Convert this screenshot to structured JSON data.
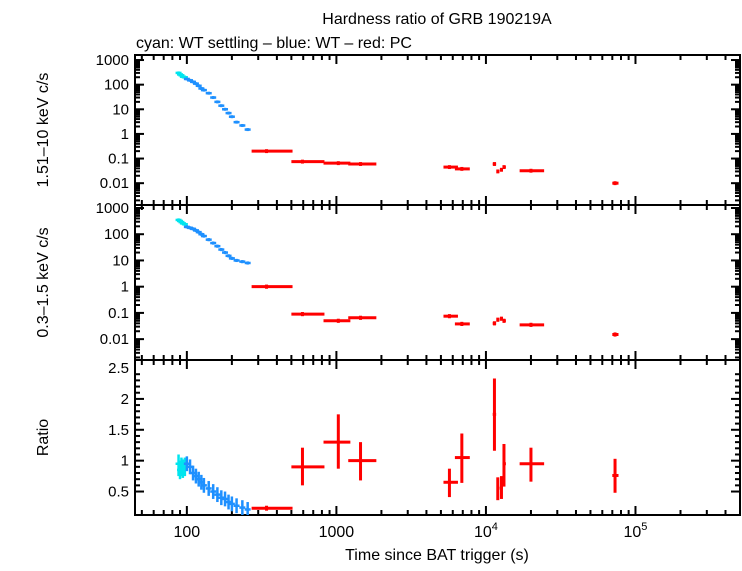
{
  "chart_data": {
    "type": "scatter",
    "title": "Hardness ratio of GRB 190219A",
    "subtitle": "cyan: WT settling – blue: WT – red: PC",
    "xlabel": "Time since BAT trigger (s)",
    "xscale": "log",
    "xlim": [
      45,
      500000
    ],
    "xticks": [
      "100",
      "1000",
      "10^4",
      "10^5"
    ],
    "xtick_values": [
      100,
      1000,
      10000,
      100000
    ],
    "colors": {
      "wt_settling": "#00e5ee",
      "wt": "#1e90ff",
      "pc": "#ff0000"
    },
    "panels": [
      {
        "ylabel": "1.51–10 keV c/s",
        "yscale": "log",
        "ylim": [
          0.0013,
          1600
        ],
        "yticks": [
          "1000",
          "100",
          "10",
          "1",
          "0.1",
          "0.01"
        ],
        "ytick_values": [
          1000,
          100,
          10,
          1,
          0.1,
          0.01
        ],
        "key": "hard"
      },
      {
        "ylabel": "0.3–1.5 keV c/s",
        "yscale": "log",
        "ylim": [
          0.0016,
          1300
        ],
        "yticks": [
          "1000",
          "100",
          "10",
          "1",
          "0.1",
          "0.01"
        ],
        "ytick_values": [
          1000,
          100,
          10,
          1,
          0.1,
          0.01
        ],
        "key": "soft"
      },
      {
        "ylabel": "Ratio",
        "yscale": "linear",
        "ylim": [
          0.12,
          2.63
        ],
        "yticks": [
          "2.5",
          "2",
          "1.5",
          "1",
          "0.5"
        ],
        "ytick_values": [
          2.5,
          2,
          1.5,
          1,
          0.5
        ],
        "key": "ratio"
      }
    ],
    "series": [
      {
        "mode": "WT settling",
        "color": "#00e5ee",
        "points": [
          {
            "t": 88,
            "hard": 300,
            "soft": 350,
            "ratio": 0.95,
            "rlo": 0.75,
            "rhi": 1.1
          },
          {
            "t": 90,
            "hard": 260,
            "soft": 320,
            "ratio": 0.85,
            "rlo": 0.7,
            "rhi": 1.0
          },
          {
            "t": 92,
            "hard": 240,
            "soft": 290,
            "ratio": 0.9,
            "rlo": 0.75,
            "rhi": 1.05
          },
          {
            "t": 94,
            "hard": 210,
            "soft": 260,
            "ratio": 0.88,
            "rlo": 0.72,
            "rhi": 1.02
          },
          {
            "t": 97,
            "hard": 200,
            "soft": 240,
            "ratio": 0.9,
            "rlo": 0.75,
            "rhi": 1.05
          }
        ]
      },
      {
        "mode": "WT",
        "color": "#1e90ff",
        "points": [
          {
            "t": 100,
            "hard": 170,
            "soft": 190,
            "ratio": 0.95
          },
          {
            "t": 105,
            "hard": 150,
            "soft": 175,
            "ratio": 0.9
          },
          {
            "t": 110,
            "hard": 130,
            "soft": 160,
            "ratio": 0.8
          },
          {
            "t": 115,
            "hard": 110,
            "soft": 140,
            "ratio": 0.75
          },
          {
            "t": 120,
            "hard": 90,
            "soft": 120,
            "ratio": 0.7
          },
          {
            "t": 125,
            "hard": 70,
            "soft": 100,
            "ratio": 0.65
          },
          {
            "t": 130,
            "hard": 60,
            "soft": 85,
            "ratio": 0.6
          },
          {
            "t": 140,
            "hard": 45,
            "soft": 62,
            "ratio": 0.55
          },
          {
            "t": 150,
            "hard": 30,
            "soft": 46,
            "ratio": 0.5
          },
          {
            "t": 160,
            "hard": 20,
            "soft": 35,
            "ratio": 0.45
          },
          {
            "t": 170,
            "hard": 14,
            "soft": 26,
            "ratio": 0.4
          },
          {
            "t": 180,
            "hard": 10,
            "soft": 20,
            "ratio": 0.38
          },
          {
            "t": 190,
            "hard": 7,
            "soft": 15,
            "ratio": 0.33
          },
          {
            "t": 200,
            "hard": 5,
            "soft": 12,
            "ratio": 0.3
          },
          {
            "t": 215,
            "hard": 3,
            "soft": 10,
            "ratio": 0.27
          },
          {
            "t": 235,
            "hard": 2.2,
            "soft": 9,
            "ratio": 0.24
          },
          {
            "t": 255,
            "hard": 1.5,
            "soft": 8,
            "ratio": 0.21
          }
        ]
      },
      {
        "mode": "PC",
        "color": "#ff0000",
        "points": [
          {
            "t": 341,
            "tlo": 271,
            "thi": 509,
            "hard": 0.2,
            "soft": 1.0,
            "ratio": 0.23,
            "rlo": 0.19,
            "rhi": 0.27
          },
          {
            "t": 593,
            "tlo": 500,
            "thi": 832,
            "hard": 0.075,
            "soft": 0.09,
            "ratio": 0.9,
            "rlo": 0.6,
            "rhi": 1.21
          },
          {
            "t": 1030,
            "tlo": 820,
            "thi": 1240,
            "hard": 0.065,
            "soft": 0.05,
            "ratio": 1.3,
            "rlo": 0.87,
            "rhi": 1.75
          },
          {
            "t": 1450,
            "tlo": 1200,
            "thi": 1850,
            "hard": 0.06,
            "soft": 0.065,
            "ratio": 1.0,
            "rlo": 0.68,
            "rhi": 1.3
          },
          {
            "t": 5700,
            "tlo": 5200,
            "thi": 6500,
            "hard": 0.045,
            "soft": 0.075,
            "ratio": 0.65,
            "rlo": 0.41,
            "rhi": 0.87
          },
          {
            "t": 6900,
            "tlo": 6200,
            "thi": 7800,
            "hard": 0.038,
            "soft": 0.038,
            "ratio": 1.05,
            "rlo": 0.64,
            "rhi": 1.44
          },
          {
            "t": 11400,
            "tlo": 11100,
            "thi": 11700,
            "hard": 0.06,
            "soft": 0.04,
            "ratio": 1.75,
            "rlo": 1.16,
            "rhi": 2.33
          },
          {
            "t": 12000,
            "tlo": 11800,
            "thi": 12300,
            "hard": 0.03,
            "soft": 0.055,
            "ratio": 0.55,
            "rlo": 0.36,
            "rhi": 0.73
          },
          {
            "t": 12700,
            "tlo": 12400,
            "thi": 13000,
            "hard": 0.035,
            "soft": 0.06,
            "ratio": 0.57,
            "rlo": 0.38,
            "rhi": 0.75
          },
          {
            "t": 13200,
            "tlo": 12900,
            "thi": 13600,
            "hard": 0.045,
            "soft": 0.05,
            "ratio": 0.95,
            "rlo": 0.58,
            "rhi": 1.27
          },
          {
            "t": 20000,
            "tlo": 16800,
            "thi": 24500,
            "hard": 0.032,
            "soft": 0.035,
            "ratio": 0.95,
            "rlo": 0.66,
            "rhi": 1.21
          },
          {
            "t": 73000,
            "tlo": 70000,
            "thi": 77000,
            "hard": 0.01,
            "soft": 0.015,
            "ratio": 0.76,
            "rlo": 0.48,
            "rhi": 1.03
          }
        ]
      }
    ]
  }
}
